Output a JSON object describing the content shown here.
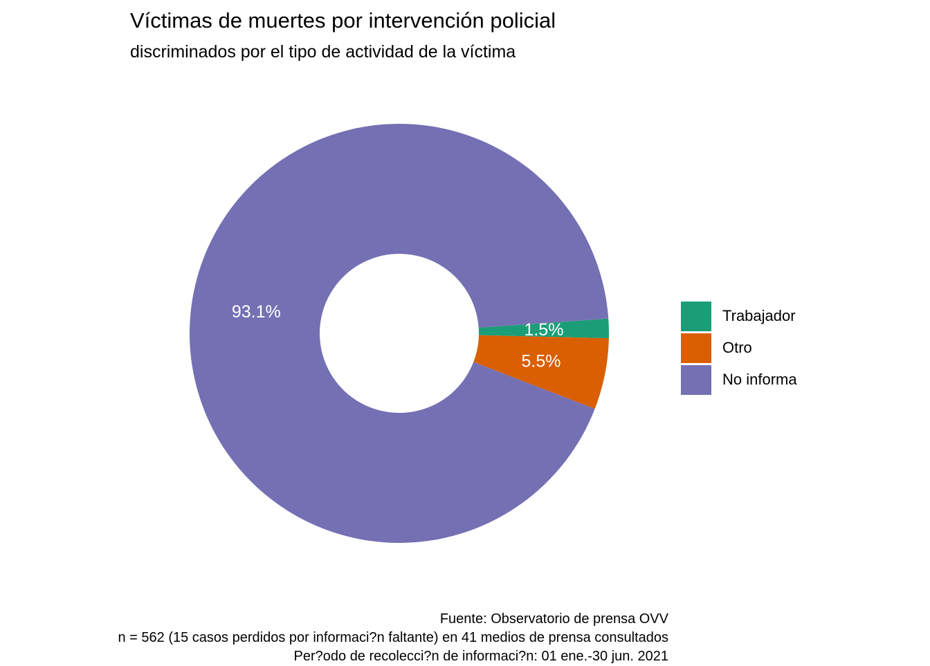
{
  "chart_data": {
    "type": "pie",
    "variant": "donut",
    "title": "Víctimas de muertes por intervención policial",
    "subtitle": "discriminados por el tipo de actividad de la víctima",
    "categories": [
      "Trabajador",
      "Otro",
      "No informa"
    ],
    "values": [
      1.5,
      5.5,
      93.1
    ],
    "labels": [
      "1.5%",
      "5.5%",
      "93.1%"
    ],
    "colors": [
      "#1B9E77",
      "#D95F02",
      "#7570B3"
    ],
    "legend_position": "right",
    "caption": [
      "Fuente: Observatorio de prensa OVV",
      "n = 562 (15 casos perdidos por informaci?n faltante) en 41 medios de prensa consultados",
      "Per?odo de recolecci?n de informaci?n: 01 ene.-30 jun. 2021"
    ]
  }
}
